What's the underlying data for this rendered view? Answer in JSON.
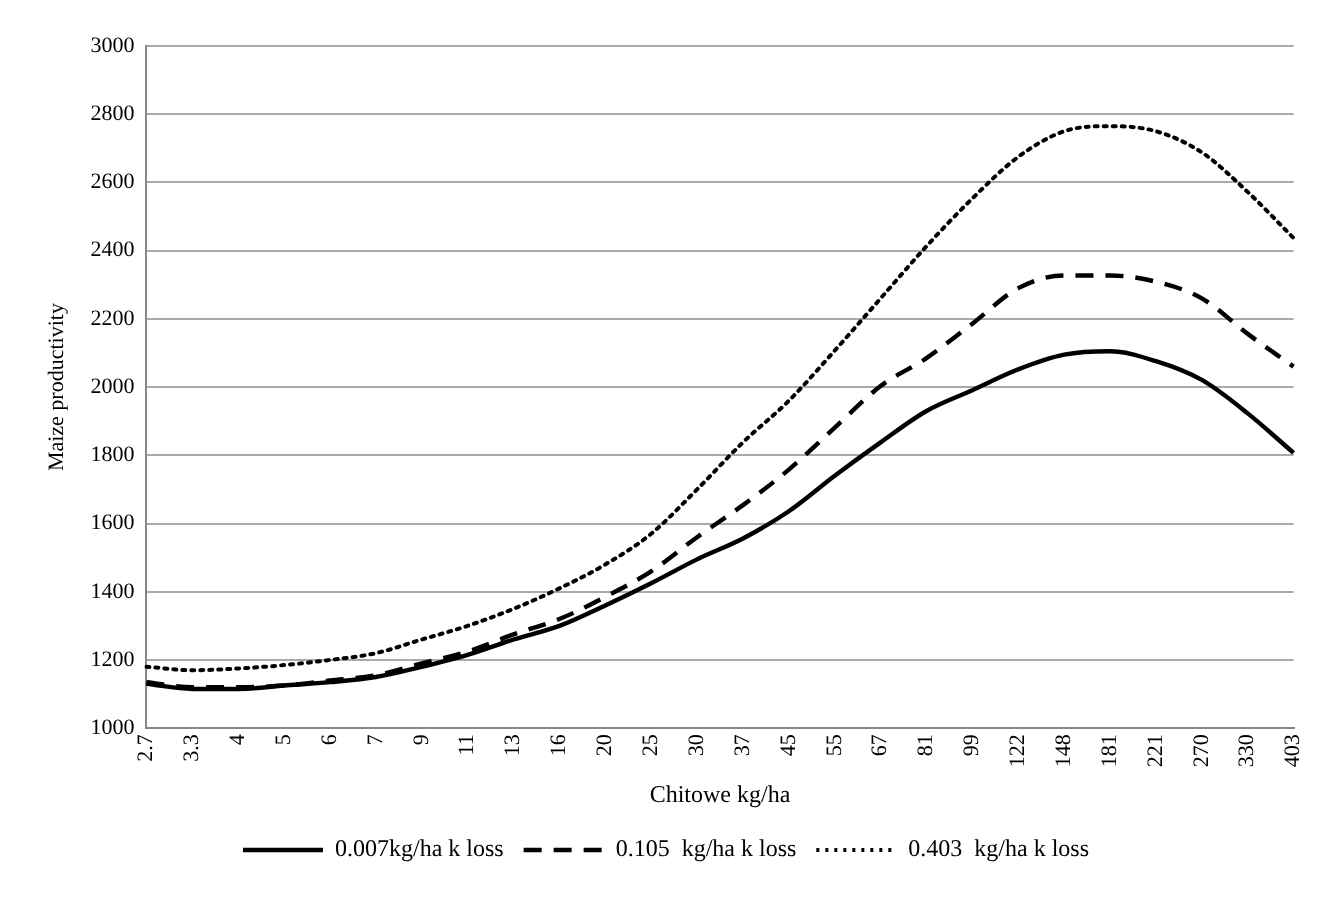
{
  "chart_data": {
    "type": "line",
    "xlabel": "Chitowe kg/ha",
    "ylabel": "Maize productivity",
    "categories": [
      "2.7",
      "3.3",
      "4",
      "5",
      "6",
      "7",
      "9",
      "11",
      "13",
      "16",
      "20",
      "25",
      "30",
      "37",
      "45",
      "55",
      "67",
      "81",
      "99",
      "122",
      "148",
      "181",
      "221",
      "270",
      "330",
      "403"
    ],
    "series": [
      {
        "name": "0.007kg/ha k loss",
        "color": "#000000",
        "line_style": "solid",
        "values": [
          1130,
          1115,
          1115,
          1125,
          1135,
          1150,
          1180,
          1215,
          1260,
          1300,
          1360,
          1425,
          1495,
          1556,
          1636,
          1740,
          1838,
          1930,
          1991,
          2052,
          2095,
          2105,
          2076,
          2021,
          1923,
          1807
        ]
      },
      {
        "name": "0.105  kg/ha k loss",
        "color": "#000000",
        "line_style": "dashed",
        "values": [
          1135,
          1120,
          1120,
          1125,
          1140,
          1155,
          1190,
          1225,
          1275,
          1320,
          1385,
          1460,
          1560,
          1654,
          1758,
          1881,
          2003,
          2085,
          2186,
          2290,
          2327,
          2327,
          2309,
          2260,
          2156,
          2060
        ]
      },
      {
        "name": "0.403  kg/ha k loss",
        "color": "#000000",
        "line_style": "dotted",
        "values": [
          1180,
          1170,
          1175,
          1185,
          1200,
          1220,
          1260,
          1300,
          1350,
          1410,
          1480,
          1570,
          1700,
          1838,
          1960,
          2107,
          2260,
          2413,
          2553,
          2675,
          2750,
          2765,
          2750,
          2688,
          2572,
          2437
        ]
      }
    ],
    "ylim": [
      1000,
      3000
    ],
    "yticks": [
      1000,
      1200,
      1400,
      1600,
      1800,
      2000,
      2200,
      2400,
      2600,
      2800,
      3000
    ],
    "grid": "y",
    "legend": "bottom",
    "marker": "none"
  }
}
